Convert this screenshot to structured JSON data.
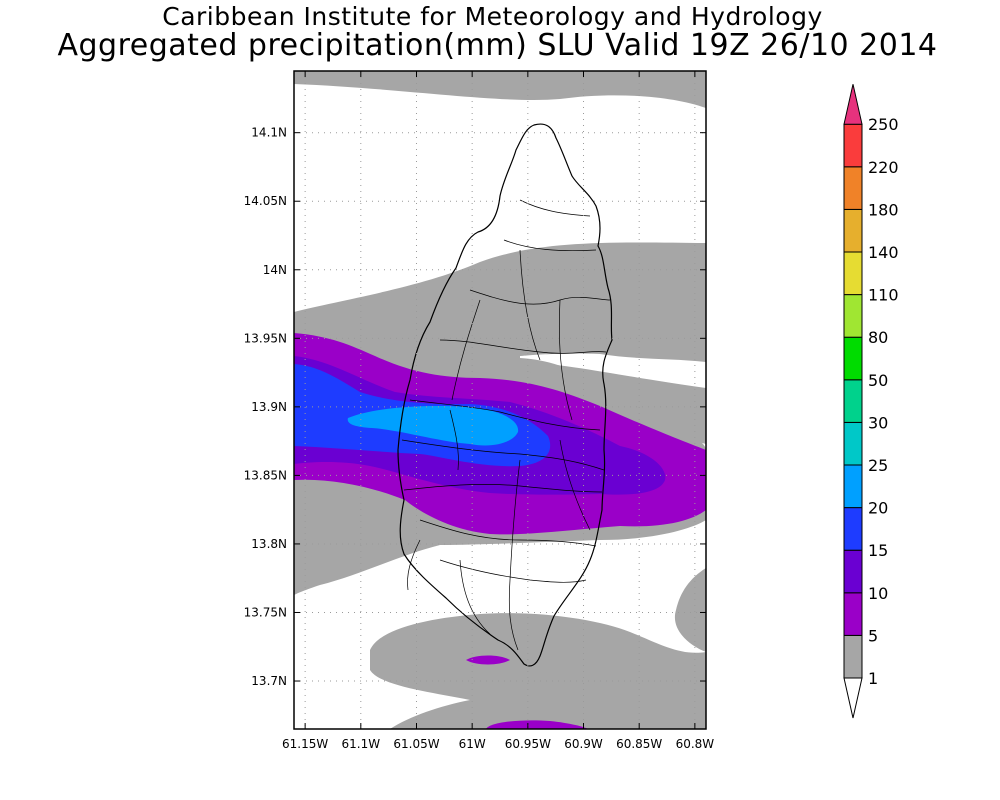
{
  "title": "Caribbean Institute for Meteorology and Hydrology",
  "subtitle": "Aggregated precipitation(mm) SLU Valid 19Z 26/10 2014",
  "map": {
    "lon_range": [
      -61.16,
      -60.79
    ],
    "lat_range": [
      13.665,
      14.145
    ],
    "lat_ticks": [
      {
        "value": 14.1,
        "label": "14.1N"
      },
      {
        "value": 14.05,
        "label": "14.05N"
      },
      {
        "value": 14.0,
        "label": "14N"
      },
      {
        "value": 13.95,
        "label": "13.95N"
      },
      {
        "value": 13.9,
        "label": "13.9N"
      },
      {
        "value": 13.85,
        "label": "13.85N"
      },
      {
        "value": 13.8,
        "label": "13.8N"
      },
      {
        "value": 13.75,
        "label": "13.75N"
      },
      {
        "value": 13.7,
        "label": "13.7N"
      }
    ],
    "lon_ticks": [
      {
        "value": -61.15,
        "label": "61.15W"
      },
      {
        "value": -61.1,
        "label": "61.1W"
      },
      {
        "value": -61.05,
        "label": "61.05W"
      },
      {
        "value": -61.0,
        "label": "61W"
      },
      {
        "value": -60.95,
        "label": "60.95W"
      },
      {
        "value": -60.9,
        "label": "60.9W"
      },
      {
        "value": -60.85,
        "label": "60.85W"
      },
      {
        "value": -60.8,
        "label": "60.8W"
      }
    ],
    "grid": "dotted"
  },
  "colorbar": {
    "levels": [
      "1",
      "5",
      "10",
      "15",
      "20",
      "25",
      "30",
      "50",
      "80",
      "110",
      "140",
      "180",
      "220",
      "250"
    ],
    "colors": [
      "#ffffff",
      "#a6a6a6",
      "#9a00c8",
      "#6a00d2",
      "#1e3cff",
      "#00a0ff",
      "#00c8c8",
      "#00d28c",
      "#00dc00",
      "#a0e632",
      "#e6dc32",
      "#e6af2d",
      "#f08228",
      "#fa3c3c",
      "#e6327d"
    ]
  },
  "colors": {
    "gray_band": "#a6a6a6",
    "purple": "#9a00c8",
    "violet": "#6a00d2",
    "blue": "#1e3cff",
    "lightblue": "#00a0ff"
  }
}
